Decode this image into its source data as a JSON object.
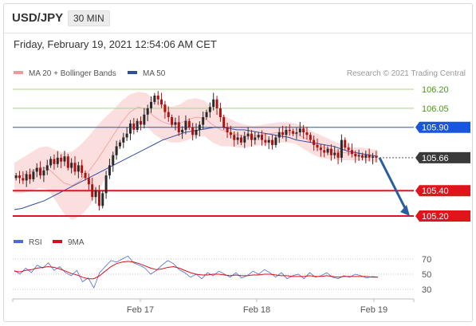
{
  "header": {
    "symbol": "USD/JPY",
    "timeframe": "30 MIN",
    "datetime": "Friday, February 19, 2021 12:54:06 AM CET"
  },
  "legend": {
    "bb": "MA 20 + Bollinger Bands",
    "ma": "MA 50",
    "credit": "Research © 2021 Trading Central"
  },
  "osc_legend": {
    "rsi": "RSI",
    "ma": "9MA"
  },
  "colors": {
    "resistance": "#1a56db",
    "support": "#e0151b",
    "green": "#4a9a1a",
    "current": "#3a3a3a",
    "candle_up": "#2a2a2a",
    "bb_fill": "#fbdcdc",
    "ma50": "#2f4f9f",
    "rsi": "#4a6bd8",
    "rsi_ma": "#d8101b"
  },
  "chart_data": [
    {
      "type": "candlestick",
      "ylim": [
        105.1,
        106.25
      ],
      "levels": [
        {
          "label": "106.20",
          "value": 106.2,
          "kind": "target"
        },
        {
          "label": "106.05",
          "value": 106.05,
          "kind": "target"
        },
        {
          "label": "105.90",
          "value": 105.9,
          "kind": "resistance"
        },
        {
          "label": "105.66",
          "value": 105.66,
          "kind": "current"
        },
        {
          "label": "105.40",
          "value": 105.4,
          "kind": "support"
        },
        {
          "label": "105.20",
          "value": 105.2,
          "kind": "support"
        }
      ],
      "x_ticks": [
        "Feb 17",
        "Feb 18",
        "Feb 19"
      ],
      "close": [
        105.52,
        105.5,
        105.48,
        105.53,
        105.49,
        105.55,
        105.58,
        105.52,
        105.56,
        105.6,
        105.65,
        105.61,
        105.66,
        105.63,
        105.67,
        105.58,
        105.62,
        105.55,
        105.6,
        105.54,
        105.5,
        105.45,
        105.35,
        105.4,
        105.28,
        105.38,
        105.52,
        105.6,
        105.68,
        105.75,
        105.78,
        105.82,
        105.85,
        105.93,
        105.88,
        105.95,
        105.92,
        106.0,
        106.05,
        106.1,
        106.15,
        106.12,
        106.08,
        106.02,
        105.98,
        105.92,
        105.94,
        105.86,
        105.88,
        105.95,
        105.9,
        105.84,
        105.88,
        105.92,
        105.98,
        106.02,
        106.06,
        106.12,
        106.05,
        105.98,
        105.9,
        105.86,
        105.84,
        105.8,
        105.82,
        105.78,
        105.83,
        105.85,
        105.8,
        105.82,
        105.84,
        105.8,
        105.78,
        105.8,
        105.76,
        105.82,
        105.86,
        105.84,
        105.88,
        105.87,
        105.85,
        105.86,
        105.89,
        105.86,
        105.84,
        105.8,
        105.76,
        105.74,
        105.72,
        105.7,
        105.73,
        105.68,
        105.7,
        105.66,
        105.8,
        105.74,
        105.72,
        105.69,
        105.67,
        105.68,
        105.66,
        105.68,
        105.66,
        105.67,
        105.66
      ],
      "ma50": [
        105.25,
        105.26,
        105.28,
        105.3,
        105.32,
        105.35,
        105.38,
        105.41,
        105.44,
        105.47,
        105.5,
        105.53,
        105.56,
        105.59,
        105.62,
        105.65,
        105.68,
        105.71,
        105.74,
        105.77,
        105.8,
        105.82,
        105.84,
        105.86,
        105.87,
        105.88,
        105.89,
        105.9,
        105.9,
        105.89,
        105.88,
        105.88,
        105.87,
        105.86,
        105.85,
        105.84,
        105.83,
        105.82,
        105.8,
        105.79,
        105.78,
        105.77,
        105.76,
        105.75,
        105.73,
        105.71,
        105.7,
        105.69,
        105.68,
        105.67
      ],
      "bb_mid": [
        105.5,
        105.52,
        105.55,
        105.58,
        105.58,
        105.52,
        105.46,
        105.44,
        105.48,
        105.55,
        105.64,
        105.74,
        105.84,
        105.94,
        106.02,
        106.06,
        106.04,
        105.98,
        105.94,
        105.92,
        105.93,
        105.96,
        105.98,
        105.97,
        105.92,
        105.88,
        105.86,
        105.84,
        105.83,
        105.83,
        105.84,
        105.85,
        105.86,
        105.86,
        105.85,
        105.82,
        105.78,
        105.75,
        105.73,
        105.71,
        105.7,
        105.69,
        105.69,
        105.68,
        105.67
      ],
      "bb_width": [
        0.12,
        0.14,
        0.15,
        0.16,
        0.17,
        0.2,
        0.24,
        0.27,
        0.28,
        0.28,
        0.27,
        0.24,
        0.2,
        0.17,
        0.14,
        0.12,
        0.13,
        0.14,
        0.14,
        0.14,
        0.15,
        0.16,
        0.15,
        0.14,
        0.14,
        0.13,
        0.11,
        0.1,
        0.09,
        0.08,
        0.08,
        0.08,
        0.08,
        0.08,
        0.08,
        0.09,
        0.09,
        0.09,
        0.08,
        0.07,
        0.06,
        0.05,
        0.05,
        0.05,
        0.05
      ],
      "forecast_arrow": {
        "from": 105.66,
        "to": 105.2
      }
    },
    {
      "type": "line",
      "name": "RSI",
      "ylim": [
        20,
        80
      ],
      "y_ticks": [
        70,
        50,
        30
      ],
      "x_ticks": [
        "Feb 17",
        "Feb 18",
        "Feb 19"
      ],
      "rsi": [
        55,
        50,
        58,
        52,
        62,
        58,
        65,
        55,
        60,
        52,
        48,
        55,
        40,
        45,
        32,
        52,
        60,
        68,
        66,
        70,
        74,
        65,
        62,
        58,
        50,
        55,
        62,
        68,
        64,
        56,
        52,
        46,
        50,
        44,
        52,
        48,
        54,
        50,
        46,
        52,
        45,
        48,
        54,
        50,
        56,
        52,
        46,
        52,
        44,
        48,
        50,
        44,
        52,
        46,
        48,
        52,
        46,
        44,
        48,
        46,
        50,
        48,
        45,
        47,
        46
      ],
      "rsi_ma": [
        54,
        53,
        55,
        56,
        58,
        59,
        60,
        59,
        57,
        54,
        51,
        49,
        46,
        44,
        44,
        48,
        54,
        60,
        64,
        66,
        67,
        66,
        64,
        61,
        58,
        56,
        57,
        59,
        60,
        58,
        55,
        52,
        50,
        49,
        49,
        50,
        50,
        49,
        48,
        49,
        48,
        48,
        49,
        49,
        50,
        50,
        49,
        48,
        48,
        47,
        47,
        47,
        48,
        47,
        47,
        48,
        47,
        46,
        47,
        47,
        47,
        47,
        47,
        46,
        46
      ]
    }
  ]
}
